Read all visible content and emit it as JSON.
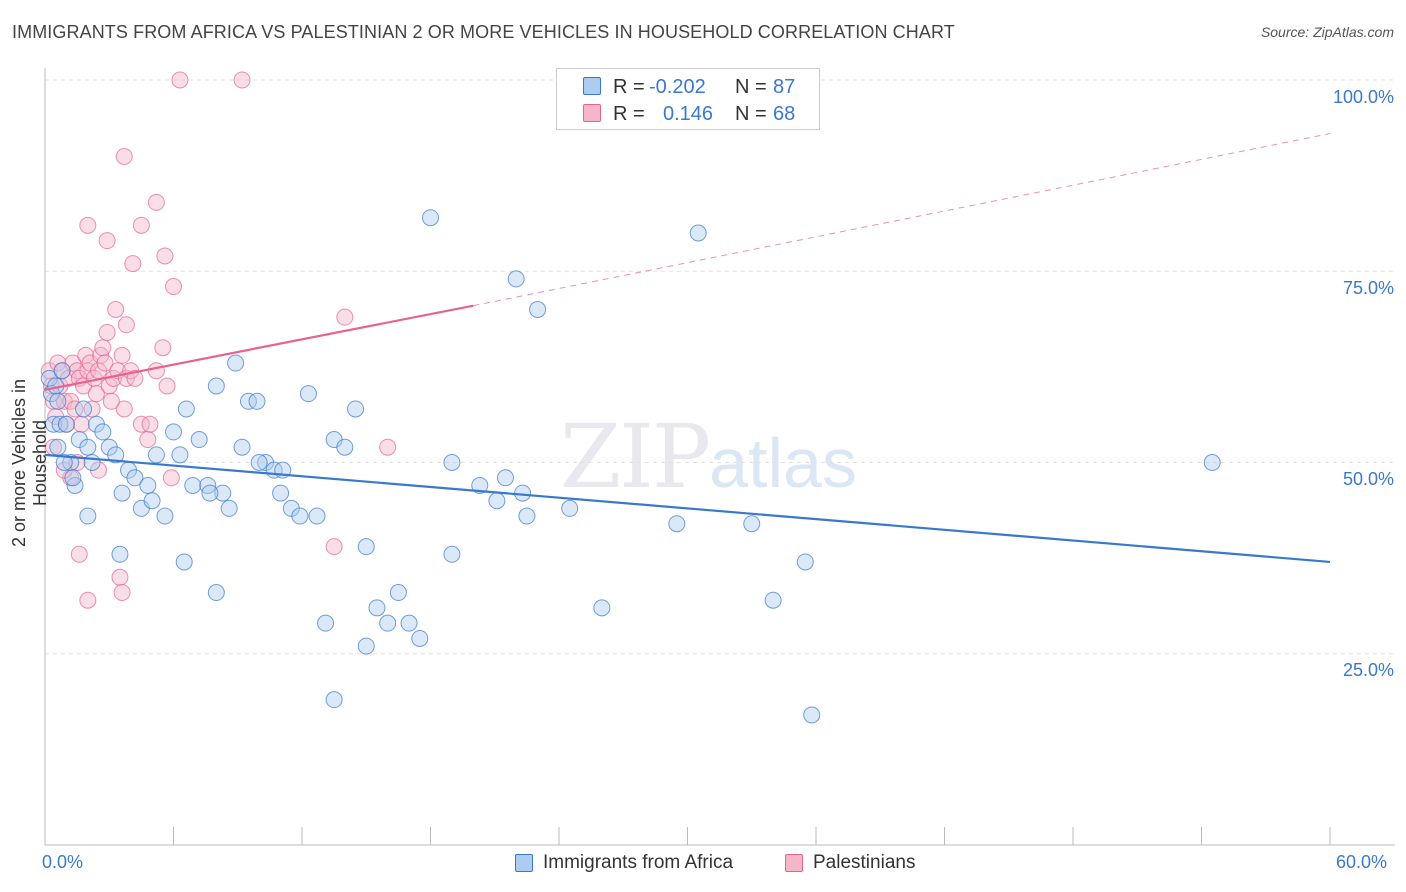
{
  "title": "IMMIGRANTS FROM AFRICA VS PALESTINIAN 2 OR MORE VEHICLES IN HOUSEHOLD CORRELATION CHART",
  "source": "Source: ZipAtlas.com",
  "watermark": {
    "zip": "ZIP",
    "atlas": "atlas"
  },
  "legend": {
    "rows": [
      {
        "r_label": "R =",
        "r_value": "-0.202",
        "n_label": "N =",
        "n_value": "87"
      },
      {
        "r_label": "R =",
        "r_value": "0.146",
        "n_label": "N =",
        "n_value": "68"
      }
    ]
  },
  "colors": {
    "blue": "#3a78d0",
    "blue_fill": "#aecbf0",
    "pink": "#e7638f",
    "pink_fill": "#f5b6c9"
  },
  "chart_data": {
    "type": "scatter",
    "xlabel": "",
    "ylabel": "2 or more Vehicles in Household",
    "xlim": [
      0,
      60
    ],
    "ylim": [
      0,
      100
    ],
    "x_tick_labels": [
      "0.0%",
      "60.0%"
    ],
    "y_tick_labels": [
      "100.0%",
      "75.0%",
      "50.0%",
      "25.0%"
    ],
    "y_tick_values": [
      100,
      75,
      50,
      25
    ],
    "grid": true,
    "legend_position": "top-center",
    "series": [
      {
        "name": "Immigrants from Africa",
        "color": "#3a78d0",
        "R": -0.202,
        "N": 87,
        "trend": {
          "x0": 0,
          "y0": 51,
          "x1": 60,
          "y1": 37
        },
        "points": [
          [
            0.2,
            61
          ],
          [
            0.3,
            59
          ],
          [
            0.4,
            55
          ],
          [
            0.5,
            60
          ],
          [
            0.6,
            58
          ],
          [
            0.7,
            55
          ],
          [
            0.8,
            62
          ],
          [
            1.0,
            55
          ],
          [
            1.2,
            50
          ],
          [
            1.4,
            47
          ],
          [
            1.6,
            53
          ],
          [
            1.8,
            57
          ],
          [
            2.0,
            52
          ],
          [
            2.2,
            50
          ],
          [
            2.4,
            55
          ],
          [
            2.7,
            54
          ],
          [
            3.0,
            52
          ],
          [
            3.3,
            51
          ],
          [
            3.6,
            46
          ],
          [
            3.9,
            49
          ],
          [
            4.2,
            48
          ],
          [
            4.5,
            44
          ],
          [
            4.8,
            47
          ],
          [
            5.2,
            51
          ],
          [
            5.6,
            43
          ],
          [
            6.0,
            54
          ],
          [
            6.3,
            51
          ],
          [
            6.6,
            57
          ],
          [
            6.9,
            47
          ],
          [
            7.2,
            53
          ],
          [
            7.6,
            47
          ],
          [
            8.0,
            60
          ],
          [
            8.3,
            46
          ],
          [
            8.6,
            44
          ],
          [
            8.9,
            63
          ],
          [
            9.2,
            52
          ],
          [
            9.5,
            58
          ],
          [
            9.9,
            58
          ],
          [
            10.3,
            50
          ],
          [
            10.7,
            49
          ],
          [
            11.1,
            49
          ],
          [
            11.5,
            44
          ],
          [
            11.9,
            43
          ],
          [
            12.3,
            59
          ],
          [
            12.7,
            43
          ],
          [
            13.1,
            29
          ],
          [
            13.5,
            53
          ],
          [
            14.0,
            52
          ],
          [
            14.5,
            57
          ],
          [
            15.0,
            39
          ],
          [
            15.5,
            31
          ],
          [
            16.0,
            29
          ],
          [
            16.5,
            33
          ],
          [
            17.0,
            29
          ],
          [
            17.5,
            27
          ],
          [
            18.0,
            82
          ],
          [
            19.0,
            50
          ],
          [
            20.3,
            47
          ],
          [
            21.1,
            45
          ],
          [
            21.5,
            48
          ],
          [
            22.3,
            46
          ],
          [
            22.5,
            43
          ],
          [
            23.0,
            70
          ],
          [
            24.5,
            44
          ],
          [
            26.0,
            31
          ],
          [
            29.5,
            42
          ],
          [
            30.5,
            80
          ],
          [
            33.0,
            42
          ],
          [
            34.0,
            32
          ],
          [
            35.5,
            37
          ],
          [
            35.8,
            17
          ],
          [
            54.5,
            50
          ],
          [
            3.5,
            38
          ],
          [
            2.0,
            43
          ],
          [
            6.5,
            37
          ],
          [
            8.0,
            33
          ],
          [
            11.0,
            46
          ],
          [
            13.5,
            19
          ],
          [
            15.0,
            26
          ],
          [
            19.0,
            38
          ],
          [
            0.6,
            52
          ],
          [
            0.9,
            50
          ],
          [
            1.3,
            48
          ],
          [
            5.0,
            45
          ],
          [
            7.7,
            46
          ],
          [
            10.0,
            50
          ],
          [
            22.0,
            74
          ]
        ]
      },
      {
        "name": "Palestinians",
        "color": "#e7638f",
        "R": 0.146,
        "N": 68,
        "trend": {
          "x0": 0,
          "y0": 59.5,
          "x1": 20,
          "y1": 70.5
        },
        "trend_dashed": {
          "x0": 20,
          "y0": 70.5,
          "x1": 60,
          "y1": 93
        },
        "points": [
          [
            0.2,
            62
          ],
          [
            0.3,
            60
          ],
          [
            0.4,
            58
          ],
          [
            0.5,
            56
          ],
          [
            0.6,
            63
          ],
          [
            0.7,
            60
          ],
          [
            0.8,
            62
          ],
          [
            0.9,
            58
          ],
          [
            1.0,
            55
          ],
          [
            1.1,
            61
          ],
          [
            1.2,
            58
          ],
          [
            1.3,
            63
          ],
          [
            1.4,
            57
          ],
          [
            1.5,
            62
          ],
          [
            1.6,
            61
          ],
          [
            1.7,
            55
          ],
          [
            1.8,
            60
          ],
          [
            1.9,
            64
          ],
          [
            2.0,
            62
          ],
          [
            2.1,
            63
          ],
          [
            2.2,
            57
          ],
          [
            2.3,
            61
          ],
          [
            2.4,
            59
          ],
          [
            2.5,
            62
          ],
          [
            2.6,
            64
          ],
          [
            2.7,
            65
          ],
          [
            2.8,
            63
          ],
          [
            3.0,
            60
          ],
          [
            3.2,
            61
          ],
          [
            3.4,
            62
          ],
          [
            3.6,
            64
          ],
          [
            3.8,
            61
          ],
          [
            4.0,
            62
          ],
          [
            4.2,
            61
          ],
          [
            4.5,
            55
          ],
          [
            4.8,
            53
          ],
          [
            5.2,
            62
          ],
          [
            5.5,
            65
          ],
          [
            5.9,
            48
          ],
          [
            6.3,
            100
          ],
          [
            9.2,
            100
          ],
          [
            3.7,
            90
          ],
          [
            2.0,
            81
          ],
          [
            2.9,
            79
          ],
          [
            4.5,
            81
          ],
          [
            4.1,
            76
          ],
          [
            5.2,
            84
          ],
          [
            5.6,
            77
          ],
          [
            6.0,
            73
          ],
          [
            3.3,
            70
          ],
          [
            2.9,
            67
          ],
          [
            3.8,
            68
          ],
          [
            14.0,
            69
          ],
          [
            2.0,
            32
          ],
          [
            1.2,
            48
          ],
          [
            1.6,
            38
          ],
          [
            3.5,
            35
          ],
          [
            3.6,
            33
          ],
          [
            13.5,
            39
          ],
          [
            16.0,
            52
          ],
          [
            0.4,
            52
          ],
          [
            0.9,
            49
          ],
          [
            1.5,
            50
          ],
          [
            2.5,
            49
          ],
          [
            3.7,
            57
          ],
          [
            3.1,
            58
          ],
          [
            4.9,
            55
          ],
          [
            5.7,
            60
          ]
        ]
      }
    ]
  },
  "bottom_legend": {
    "blue_label": "Immigrants from Africa",
    "pink_label": "Palestinians"
  }
}
